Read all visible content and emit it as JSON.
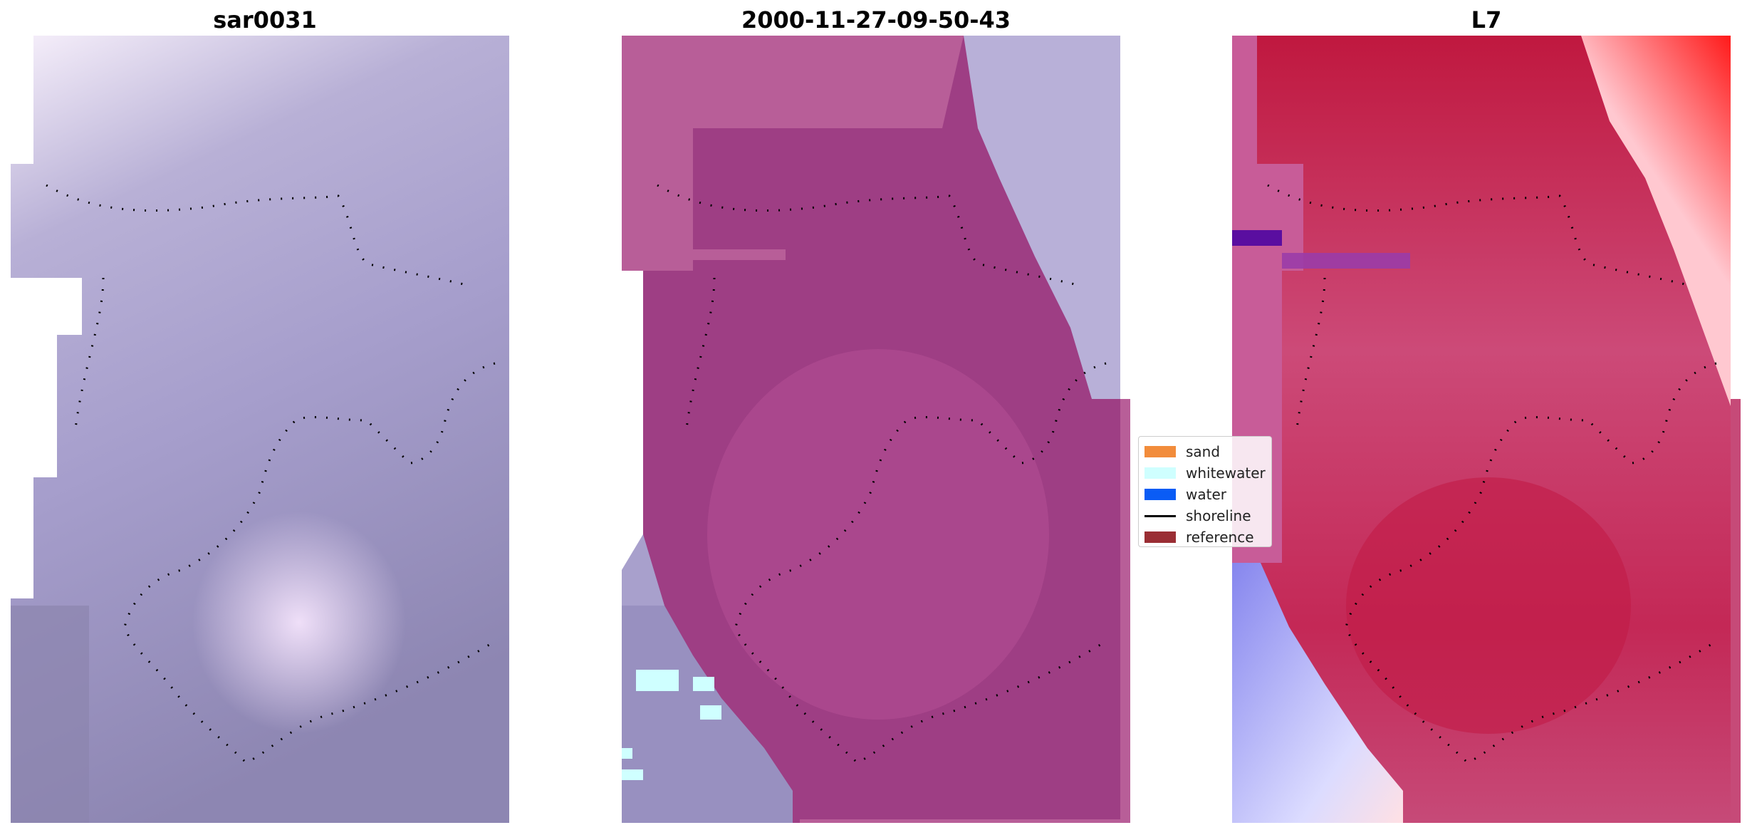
{
  "panels": [
    {
      "title": "sar0031",
      "name": "panel-sar0031"
    },
    {
      "title": "2000-11-27-09-50-43",
      "name": "panel-classification"
    },
    {
      "title": "L7",
      "name": "panel-l7"
    }
  ],
  "legend": {
    "items": [
      {
        "label": "sand",
        "color": "#f28c3b",
        "kind": "patch"
      },
      {
        "label": "whitewater",
        "color": "#cfffff",
        "kind": "patch"
      },
      {
        "label": "water",
        "color": "#0a5cf5",
        "kind": "patch"
      },
      {
        "label": "shoreline",
        "color": "#000000",
        "kind": "line"
      },
      {
        "label": "reference",
        "color": "#9a2e34",
        "kind": "patch"
      }
    ]
  },
  "colors": {
    "sar_light": "#eadcf5",
    "sar_mid": "#a8a0cc",
    "sar_dark": "#8c84b0",
    "class_magenta": "#9e3e84",
    "class_pink": "#b85e98",
    "class_lavender": "#b8b0d8",
    "l7_red": "#c0183f",
    "l7_pink": "#cc4a78",
    "l7_bright": "#ff2020",
    "l7_blue": "#8888ee"
  }
}
